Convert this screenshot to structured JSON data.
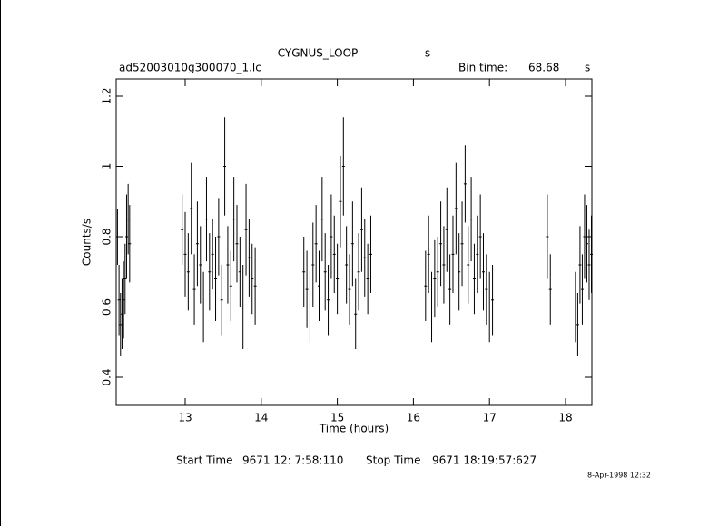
{
  "chart_data": {
    "type": "errorbar",
    "title": "CYGNUS_LOOP",
    "title_unit": "s",
    "file": "ad52003010g300070_1.lc",
    "bin_time_label": "Bin time:",
    "bin_time": 68.68,
    "bin_time_unit": "s",
    "x_label": "Time (hours)",
    "y_label": "Counts/s",
    "start_label": "Start Time",
    "start_value": "9671 12: 7:58:110",
    "stop_label": "Stop Time",
    "stop_value": "9671 18:19:57:627",
    "timestamp": "8-Apr-1998 12:32",
    "color": "#000000",
    "xlim": [
      12.093,
      18.346
    ],
    "xticks": [
      13,
      14,
      15,
      16,
      17,
      18
    ],
    "ylim": [
      0.32,
      1.249
    ],
    "yticks": [
      0.4,
      0.6,
      0.8,
      1,
      1.2
    ],
    "x": [
      12.11,
      12.13,
      12.15,
      12.17,
      12.19,
      12.21,
      12.23,
      12.25,
      12.27,
      12.96,
      13.0,
      13.04,
      13.08,
      13.12,
      13.16,
      13.2,
      13.24,
      13.28,
      13.32,
      13.36,
      13.4,
      13.44,
      13.48,
      13.52,
      13.56,
      13.6,
      13.64,
      13.68,
      13.72,
      13.76,
      13.8,
      13.84,
      13.88,
      13.92,
      14.56,
      14.6,
      14.64,
      14.68,
      14.72,
      14.76,
      14.8,
      14.84,
      14.88,
      14.92,
      14.96,
      15.0,
      15.04,
      15.08,
      15.12,
      15.16,
      15.2,
      15.24,
      15.28,
      15.32,
      15.36,
      15.4,
      15.44,
      16.16,
      16.2,
      16.24,
      16.28,
      16.32,
      16.36,
      16.4,
      16.44,
      16.48,
      16.52,
      16.56,
      16.6,
      16.64,
      16.68,
      16.72,
      16.76,
      16.8,
      16.84,
      16.88,
      16.92,
      16.96,
      17.0,
      17.04,
      17.76,
      17.8,
      18.13,
      18.16,
      18.19,
      18.22,
      18.25,
      18.28,
      18.31,
      18.34
    ],
    "values": [
      0.8,
      0.62,
      0.55,
      0.58,
      0.62,
      0.68,
      0.8,
      0.85,
      0.78,
      0.82,
      0.75,
      0.7,
      0.88,
      0.65,
      0.78,
      0.72,
      0.6,
      0.85,
      0.7,
      0.75,
      0.68,
      0.8,
      0.62,
      1.0,
      0.72,
      0.66,
      0.85,
      0.78,
      0.7,
      0.6,
      0.82,
      0.74,
      0.68,
      0.66,
      0.7,
      0.65,
      0.6,
      0.72,
      0.78,
      0.66,
      0.85,
      0.7,
      0.62,
      0.8,
      0.75,
      0.68,
      0.9,
      1.0,
      0.72,
      0.65,
      0.78,
      0.58,
      0.7,
      0.82,
      0.74,
      0.68,
      0.75,
      0.66,
      0.75,
      0.6,
      0.68,
      0.7,
      0.78,
      0.72,
      0.82,
      0.65,
      0.75,
      0.88,
      0.7,
      0.78,
      0.95,
      0.72,
      0.85,
      0.68,
      0.75,
      0.8,
      0.7,
      0.65,
      0.6,
      0.62,
      0.8,
      0.65,
      0.6,
      0.55,
      0.72,
      0.65,
      0.8,
      0.78,
      0.72,
      0.75
    ],
    "errors": [
      0.08,
      0.1,
      0.09,
      0.1,
      0.11,
      0.1,
      0.12,
      0.1,
      0.11,
      0.1,
      0.12,
      0.11,
      0.13,
      0.1,
      0.12,
      0.11,
      0.1,
      0.12,
      0.11,
      0.1,
      0.12,
      0.11,
      0.1,
      0.14,
      0.11,
      0.1,
      0.12,
      0.11,
      0.1,
      0.12,
      0.13,
      0.11,
      0.1,
      0.11,
      0.1,
      0.11,
      0.1,
      0.12,
      0.11,
      0.1,
      0.12,
      0.11,
      0.1,
      0.12,
      0.11,
      0.1,
      0.13,
      0.14,
      0.11,
      0.1,
      0.12,
      0.1,
      0.11,
      0.12,
      0.11,
      0.1,
      0.11,
      0.1,
      0.11,
      0.1,
      0.11,
      0.1,
      0.12,
      0.11,
      0.12,
      0.1,
      0.11,
      0.13,
      0.11,
      0.12,
      0.11,
      0.11,
      0.12,
      0.1,
      0.11,
      0.12,
      0.11,
      0.1,
      0.1,
      0.1,
      0.12,
      0.1,
      0.1,
      0.09,
      0.11,
      0.1,
      0.12,
      0.11,
      0.1,
      0.11
    ]
  }
}
